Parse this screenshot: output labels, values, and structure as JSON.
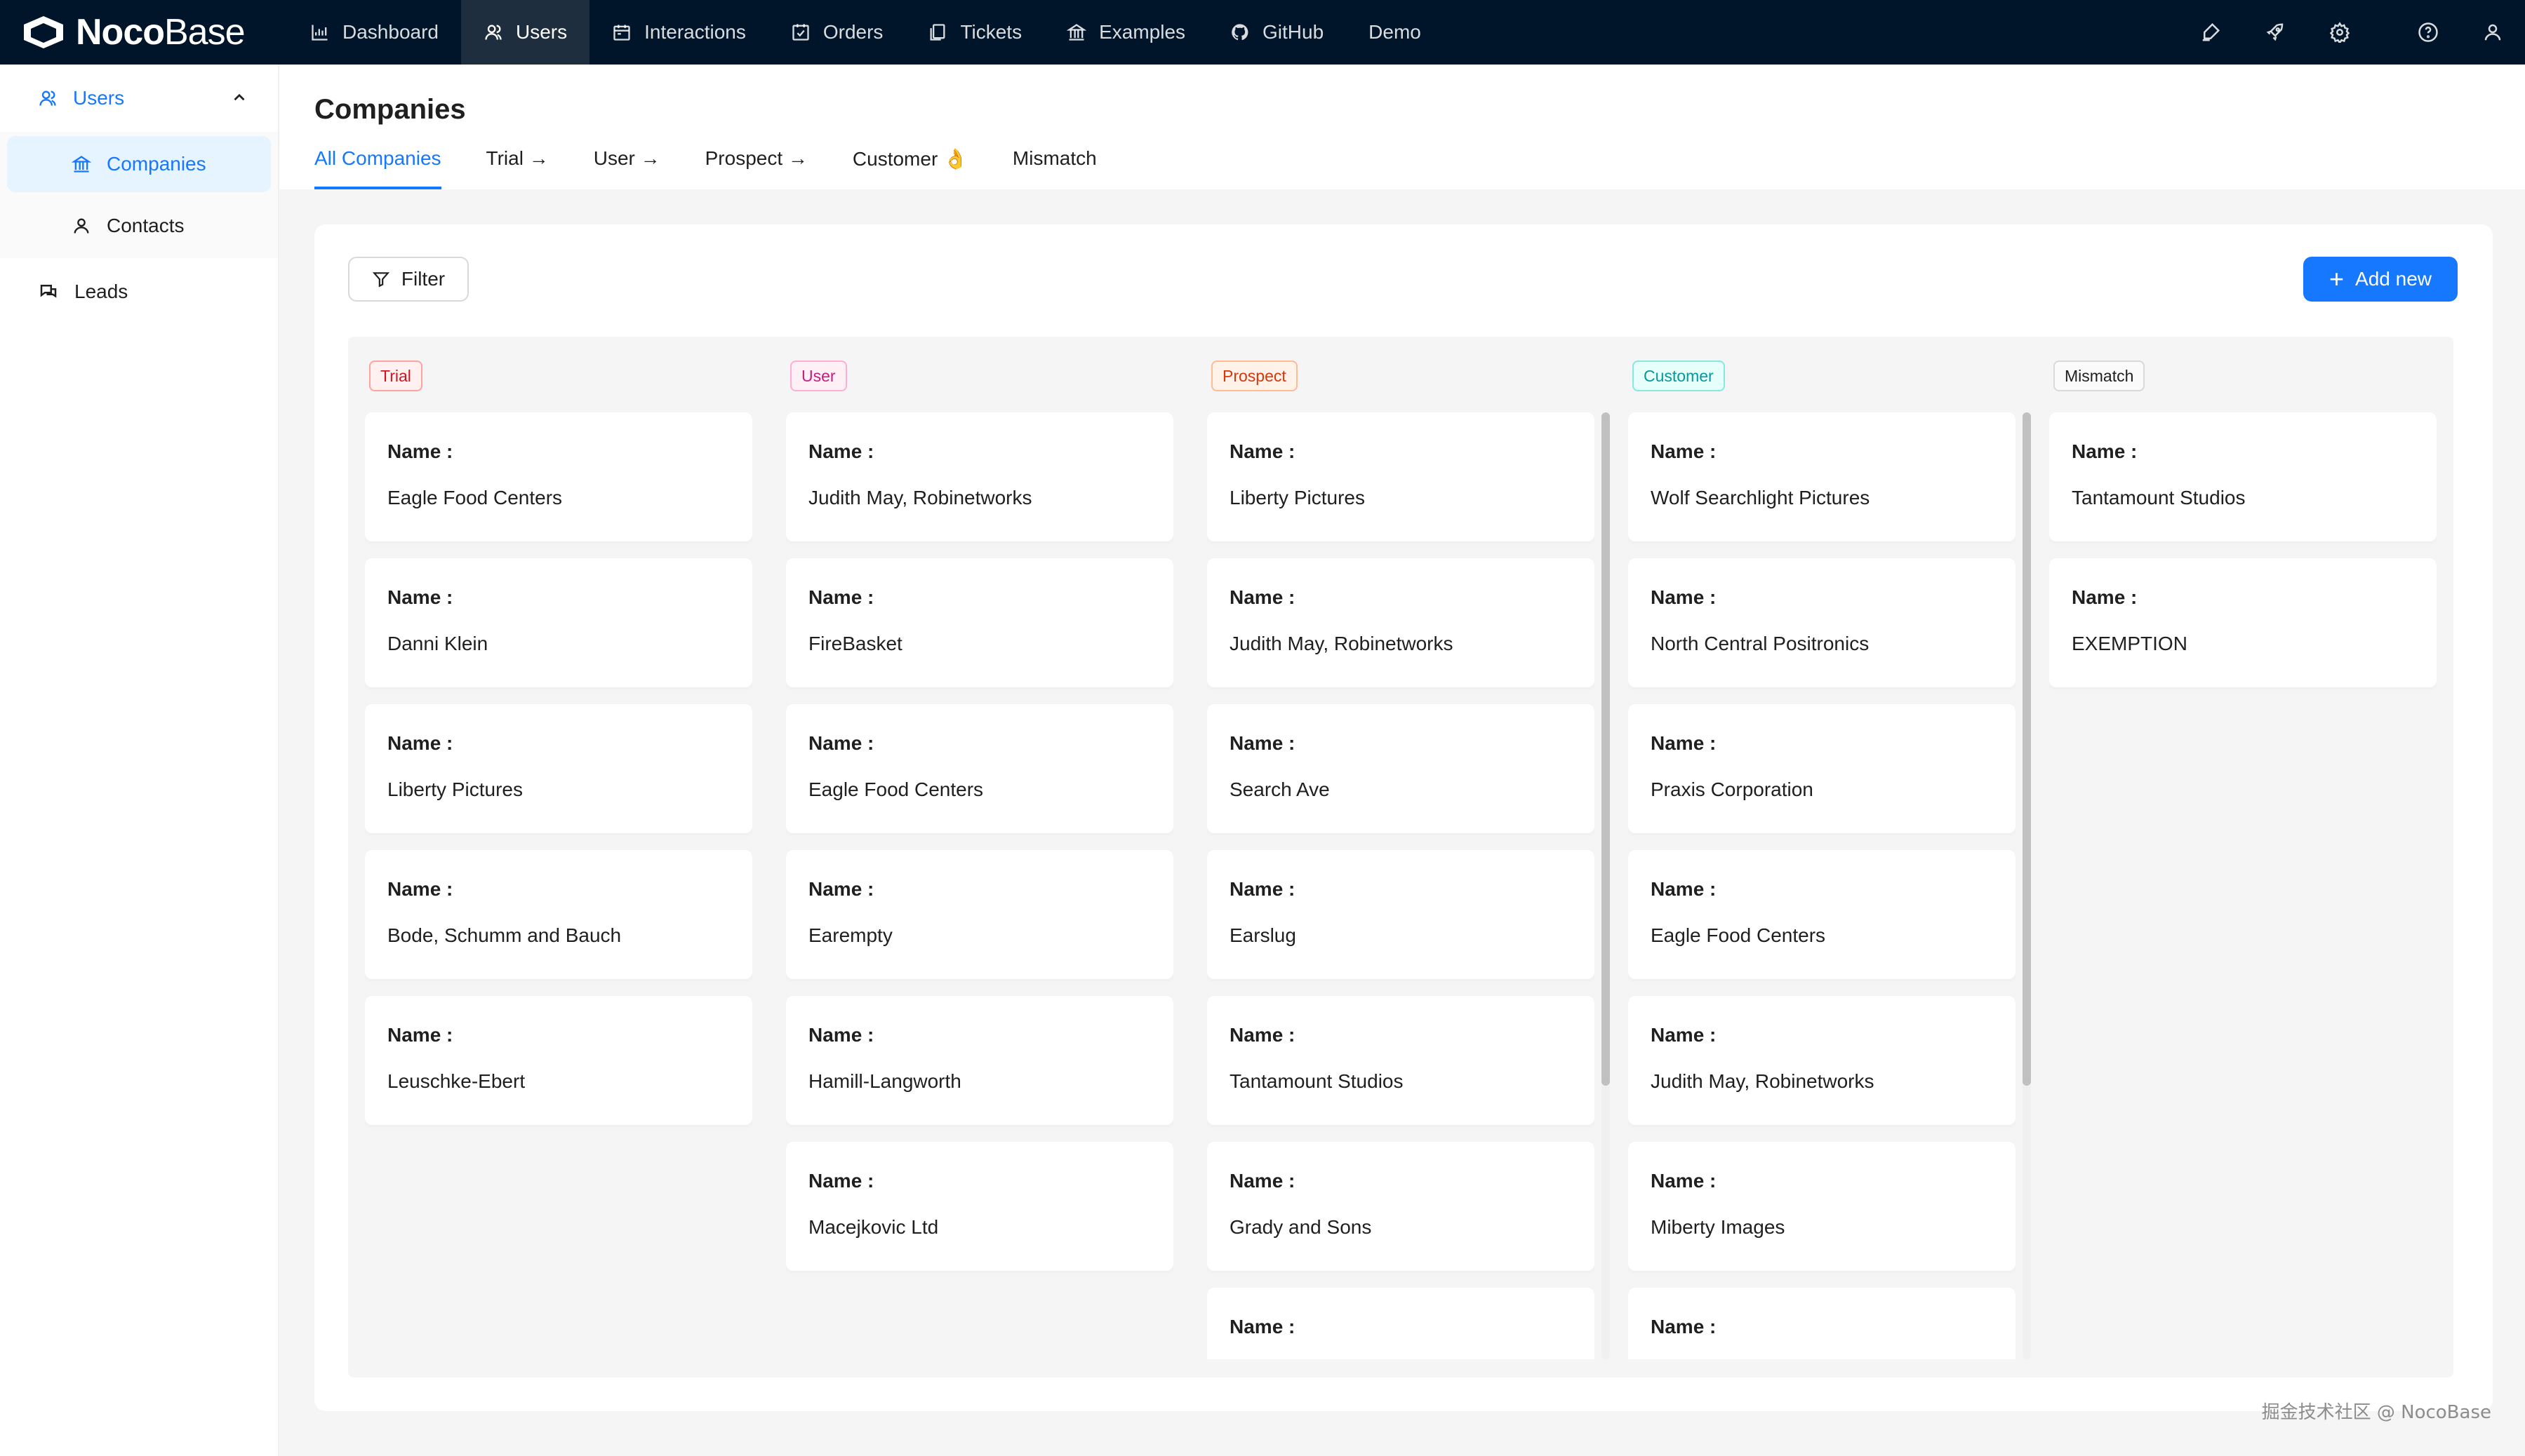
{
  "app": {
    "logo_bold": "Noco",
    "logo_light": "Base"
  },
  "nav": [
    {
      "label": "Dashboard",
      "icon": "bar-chart-icon"
    },
    {
      "label": "Users",
      "icon": "users-icon",
      "active": true
    },
    {
      "label": "Interactions",
      "icon": "calendar-icon"
    },
    {
      "label": "Orders",
      "icon": "schedule-icon"
    },
    {
      "label": "Tickets",
      "icon": "copy-icon"
    },
    {
      "label": "Examples",
      "icon": "bank-icon"
    },
    {
      "label": "GitHub",
      "icon": "github-icon"
    },
    {
      "label": "Demo",
      "icon": ""
    }
  ],
  "top_icons": [
    "highlight-icon",
    "rocket-icon",
    "settings-icon",
    "help-icon",
    "user-icon"
  ],
  "sidebar": {
    "group_label": "Users",
    "items": [
      {
        "label": "Companies",
        "active": true
      },
      {
        "label": "Contacts"
      }
    ],
    "leads_label": "Leads"
  },
  "page": {
    "title": "Companies",
    "tabs": [
      {
        "label": "All Companies",
        "active": true
      },
      {
        "label": "Trial →"
      },
      {
        "label": "User →"
      },
      {
        "label": "Prospect →"
      },
      {
        "label": "Customer 👌"
      },
      {
        "label": "Mismatch"
      }
    ]
  },
  "toolbar": {
    "filter_label": "Filter",
    "add_label": "Add new"
  },
  "board": {
    "field_label": "Name :",
    "columns": [
      {
        "tag": "Trial",
        "tag_color": "#cf1322",
        "tag_bg": "#fff1f0",
        "tag_border": "#ffa39e",
        "cards": [
          "Eagle Food Centers",
          "Danni Klein",
          "Liberty Pictures",
          "Bode, Schumm and Bauch",
          "Leuschke-Ebert"
        ]
      },
      {
        "tag": "User",
        "tag_color": "#c41d7f",
        "tag_bg": "#fff0f6",
        "tag_border": "#ffadd2",
        "cards": [
          "Judith May, Robinetworks",
          "FireBasket",
          "Eagle Food Centers",
          "Earempty",
          "Hamill-Langworth",
          "Macejkovic Ltd"
        ]
      },
      {
        "tag": "Prospect",
        "tag_color": "#d4380d",
        "tag_bg": "#fff2e8",
        "tag_border": "#ffbb96",
        "cards": [
          "Liberty Pictures",
          "Judith May, Robinetworks",
          "Search Ave",
          "Earslug",
          "Tantamount Studios",
          "Grady and Sons",
          ""
        ]
      },
      {
        "tag": "Customer",
        "tag_color": "#08979c",
        "tag_bg": "#e6fffb",
        "tag_border": "#87e8de",
        "cards": [
          "Wolf Searchlight Pictures",
          "North Central Positronics",
          "Praxis Corporation",
          "Eagle Food Centers",
          "Judith May, Robinetworks",
          "Miberty Images",
          ""
        ]
      },
      {
        "tag": "Mismatch",
        "tag_color": "#1f1f1f",
        "tag_bg": "#fafafa",
        "tag_border": "#d9d9d9",
        "cards": [
          "Tantamount Studios",
          "EXEMPTION"
        ]
      }
    ]
  },
  "watermark": "掘金技术社区 @ NocoBase"
}
